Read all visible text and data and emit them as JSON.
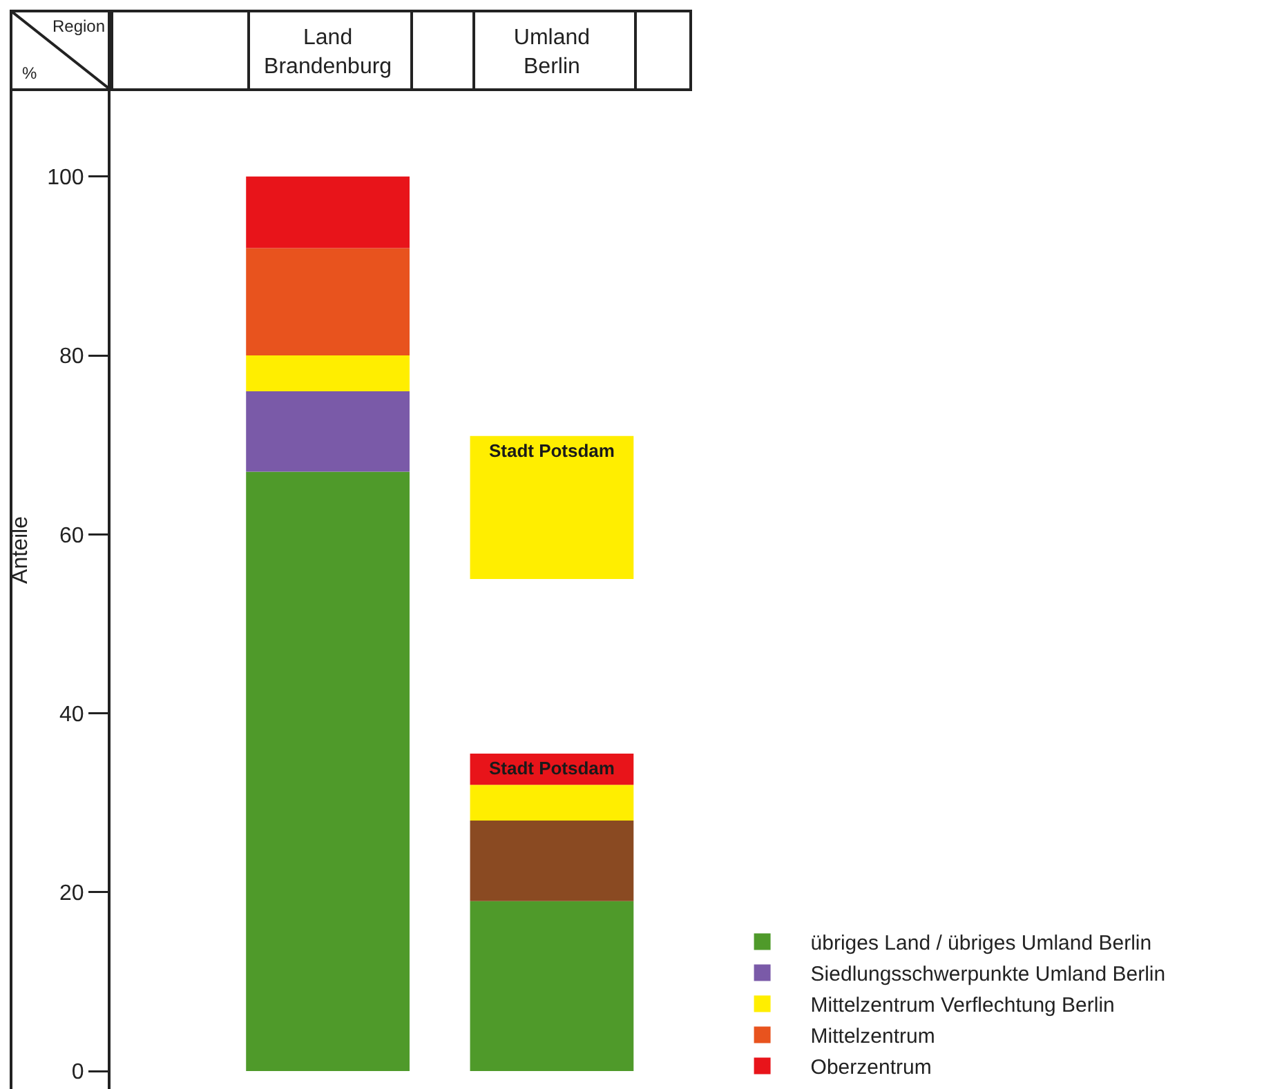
{
  "chart_data": {
    "type": "bar",
    "xlabel": "Region",
    "ylabel": "Anteile",
    "annotations": [
      "%"
    ],
    "categories": [
      "Land Brandenburg",
      "Umland Berlin"
    ],
    "series": [
      {
        "name": "übriges Land / übriges Umland Berlin",
        "color": "#4f9a2a",
        "base": [
          0,
          0
        ],
        "values": [
          67,
          19
        ]
      },
      {
        "name": "Siedlungsschwerpunkte Umland Berlin",
        "colors": [
          "#7a5aa8",
          "#8a4a22"
        ],
        "base": [
          67,
          19
        ],
        "values": [
          9,
          9
        ]
      },
      {
        "name": "Mittelzentrum Verflechtung Berlin",
        "color": "#ffee00",
        "base": [
          76,
          28
        ],
        "values": [
          4,
          4
        ]
      },
      {
        "name": "Mittelzentrum",
        "color": "#e8531e",
        "base": [
          80,
          null
        ],
        "values": [
          12,
          null
        ]
      },
      {
        "name": "Oberzentrum",
        "color": "#e8141a",
        "base": [
          92,
          32
        ],
        "values": [
          8,
          3.5
        ],
        "value_labels": [
          null,
          "Stadt Potsdam"
        ]
      },
      {
        "color": "#ffee00",
        "base": [
          null,
          55
        ],
        "values": [
          null,
          16
        ],
        "value_labels": [
          null,
          "Stadt Potsdam"
        ]
      }
    ],
    "ylim": [
      -2,
      118.5
    ],
    "yticks": [
      0,
      20,
      40,
      60,
      80,
      100
    ],
    "legend": "bottom right"
  }
}
